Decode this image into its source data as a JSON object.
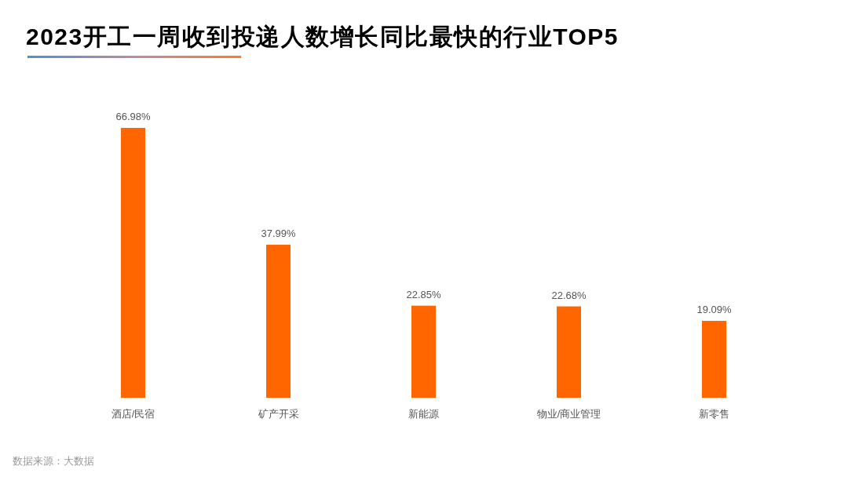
{
  "chart_data": {
    "type": "bar",
    "title": "2023开工一周收到投递人数增长同比最快的行业TOP5",
    "categories": [
      "酒店/民宿",
      "矿产开采",
      "新能源",
      "物业/商业管理",
      "新零售"
    ],
    "values": [
      66.98,
      37.99,
      22.85,
      22.68,
      19.09
    ],
    "value_labels": [
      "66.98%",
      "37.99%",
      "22.85%",
      "22.68%",
      "19.09%"
    ],
    "color": "#ff6600",
    "annotations": [
      "数据来源：大数据"
    ]
  }
}
